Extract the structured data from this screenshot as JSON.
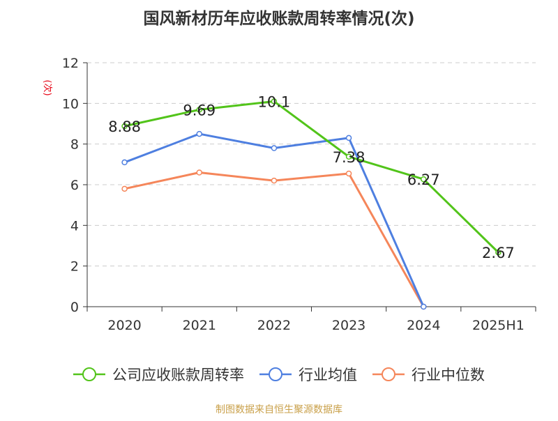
{
  "chart_data": {
    "type": "line",
    "title": "国风新材历年应收账款周转率情况(次)",
    "xlabel": "",
    "ylabel": "(次)",
    "categories": [
      "2020",
      "2021",
      "2022",
      "2023",
      "2024",
      "2025H1"
    ],
    "ylim": [
      0,
      12
    ],
    "yticks": [
      0,
      2,
      4,
      6,
      8,
      10,
      12
    ],
    "grid": true,
    "legend_position": "bottom",
    "series": [
      {
        "name": "公司应收账款周转率",
        "values": [
          8.88,
          9.69,
          10.1,
          7.38,
          6.27,
          2.67
        ],
        "data_labels": [
          "8.88",
          "9.69",
          "10.1",
          "7.38",
          "6.27",
          "2.67"
        ],
        "color": "#52c41a"
      },
      {
        "name": "行业均值",
        "values": [
          7.1,
          8.5,
          7.8,
          8.3,
          0,
          null
        ],
        "color": "#4e7fe0"
      },
      {
        "name": "行业中位数",
        "values": [
          5.8,
          6.6,
          6.2,
          6.55,
          0,
          null
        ],
        "color": "#f5865a"
      }
    ]
  },
  "source": "制图数据来自恒生聚源数据库",
  "colors": {
    "axis": "#333333",
    "grid": "#cccccc",
    "ylabel": "#e60012",
    "source": "#c9a04a",
    "title": "#333333"
  }
}
